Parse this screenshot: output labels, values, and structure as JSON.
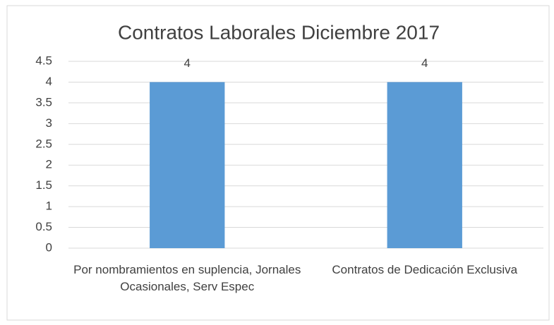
{
  "chart_data": {
    "type": "bar",
    "title": "Contratos Laborales Diciembre 2017",
    "categories": [
      "Por nombramientos en suplencia, Jornales Ocasionales, Serv Espec",
      "Contratos de Dedicación Exclusiva"
    ],
    "values": [
      4,
      4
    ],
    "color": "#5b9bd5",
    "ylim": [
      0,
      4.5
    ],
    "yticks": [
      0,
      0.5,
      1,
      1.5,
      2,
      2.5,
      3,
      3.5,
      4,
      4.5
    ],
    "grid": true,
    "data_labels": true
  }
}
